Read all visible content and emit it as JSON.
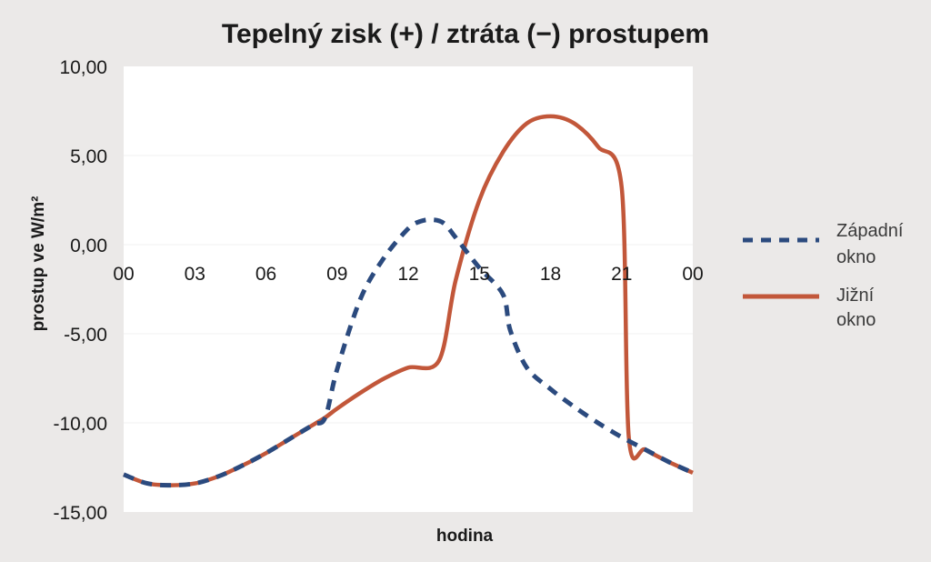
{
  "chart_data": {
    "type": "line",
    "title": "Tepelný zisk (+) / ztráta (−) prostupem",
    "xlabel": "hodina",
    "ylabel": "prostup ve W/m²",
    "x_ticks": [
      "00",
      "03",
      "06",
      "09",
      "12",
      "15",
      "18",
      "21",
      "00"
    ],
    "y_ticks": [
      "10,00",
      "5,00",
      "0,00",
      "-5,00",
      "-10,00",
      "-15,00"
    ],
    "ylim": [
      -15,
      10
    ],
    "xlim": [
      0,
      24
    ],
    "legend_position": "right",
    "series": [
      {
        "name": "Západní okno",
        "color": "#2b4a7e",
        "style": "dashed",
        "x": [
          0,
          1,
          2,
          3,
          4,
          5,
          6,
          7,
          8,
          8.5,
          9,
          10,
          11,
          12,
          12.5,
          13,
          13.5,
          14,
          15,
          16,
          16.3,
          17,
          18,
          19,
          20,
          21,
          22,
          23,
          24
        ],
        "y": [
          -12.9,
          -13.4,
          -13.5,
          -13.4,
          -13.0,
          -12.4,
          -11.7,
          -10.9,
          -10.1,
          -9.7,
          -7.0,
          -3.0,
          -0.7,
          0.9,
          1.3,
          1.4,
          1.2,
          0.4,
          -1.3,
          -2.8,
          -4.8,
          -6.9,
          -8.1,
          -9.1,
          -10.0,
          -10.8,
          -11.5,
          -12.2,
          -12.8
        ]
      },
      {
        "name": "Jižní okno",
        "color": "#c2573a",
        "style": "solid",
        "x": [
          0,
          1,
          2,
          3,
          4,
          5,
          6,
          7,
          8,
          8.5,
          9,
          10,
          11,
          12,
          13.3,
          14,
          15,
          16,
          17,
          18,
          19,
          20,
          21,
          21.3,
          22,
          23,
          24
        ],
        "y": [
          -12.9,
          -13.4,
          -13.5,
          -13.4,
          -13.0,
          -12.4,
          -11.7,
          -10.9,
          -10.1,
          -9.7,
          -9.2,
          -8.3,
          -7.5,
          -6.9,
          -6.5,
          -2.0,
          2.5,
          5.2,
          6.8,
          7.2,
          6.8,
          5.5,
          3.2,
          -10.8,
          -11.5,
          -12.2,
          -12.8
        ]
      }
    ]
  },
  "legend": {
    "items": [
      {
        "line1": "Západní",
        "line2": "okno"
      },
      {
        "line1": "Jižní",
        "line2": "okno"
      }
    ]
  }
}
